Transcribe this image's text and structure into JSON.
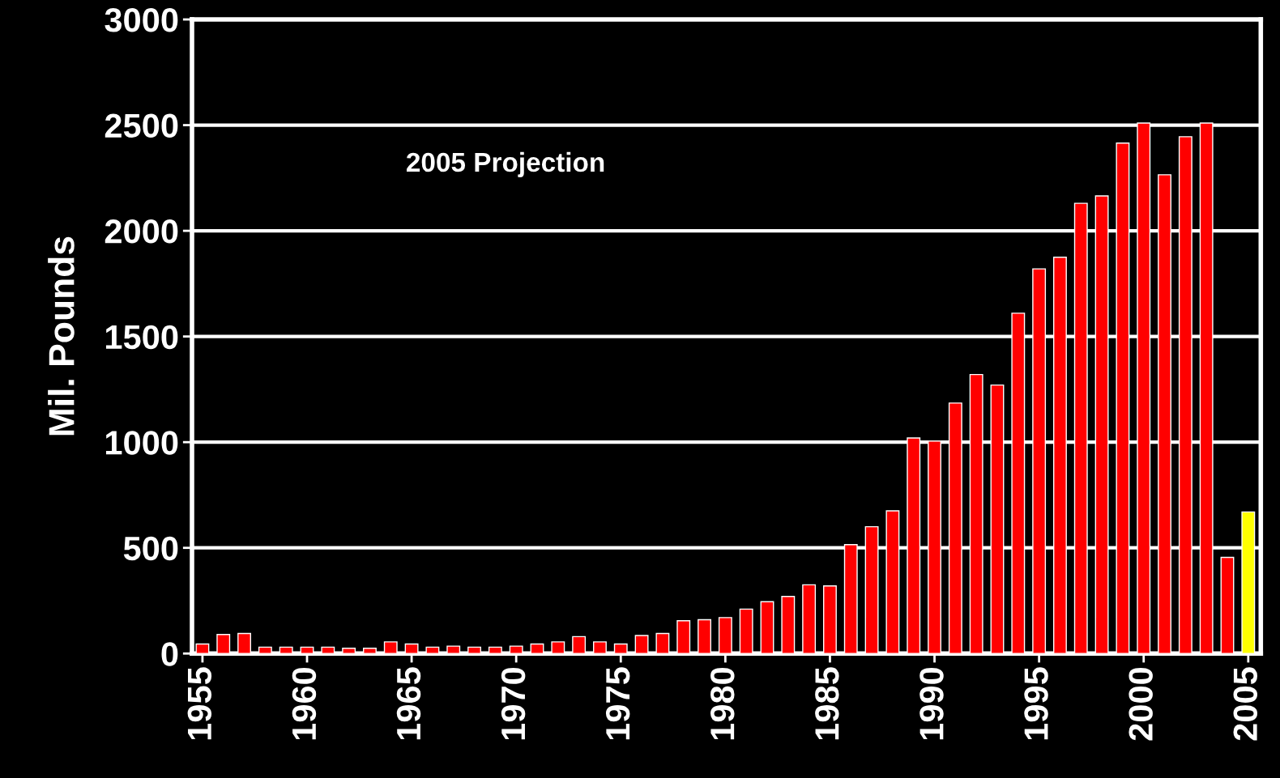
{
  "chart_data": {
    "type": "bar",
    "ylabel": "Mil. Pounds",
    "x": [
      1955,
      1956,
      1957,
      1958,
      1959,
      1960,
      1961,
      1962,
      1963,
      1964,
      1965,
      1966,
      1967,
      1968,
      1969,
      1970,
      1971,
      1972,
      1973,
      1974,
      1975,
      1976,
      1977,
      1978,
      1979,
      1980,
      1981,
      1982,
      1983,
      1984,
      1985,
      1986,
      1987,
      1988,
      1989,
      1990,
      1991,
      1992,
      1993,
      1994,
      1995,
      1996,
      1997,
      1998,
      1999,
      2000,
      2001,
      2002,
      2003,
      2004,
      2005
    ],
    "values": [
      45,
      90,
      95,
      30,
      30,
      30,
      30,
      25,
      25,
      55,
      45,
      30,
      35,
      30,
      30,
      35,
      45,
      55,
      80,
      55,
      45,
      85,
      95,
      155,
      160,
      170,
      210,
      245,
      270,
      325,
      320,
      515,
      600,
      675,
      1020,
      1005,
      1185,
      1320,
      1270,
      1610,
      1820,
      1875,
      2130,
      2165,
      2415,
      2510,
      2265,
      2445,
      2510,
      455,
      670
    ],
    "colors": [
      "#ff0000",
      "#ff0000",
      "#ff0000",
      "#ff0000",
      "#ff0000",
      "#ff0000",
      "#ff0000",
      "#ff0000",
      "#ff0000",
      "#ff0000",
      "#ff0000",
      "#ff0000",
      "#ff0000",
      "#ff0000",
      "#ff0000",
      "#ff0000",
      "#ff0000",
      "#ff0000",
      "#ff0000",
      "#ff0000",
      "#ff0000",
      "#ff0000",
      "#ff0000",
      "#ff0000",
      "#ff0000",
      "#ff0000",
      "#ff0000",
      "#ff0000",
      "#ff0000",
      "#ff0000",
      "#ff0000",
      "#ff0000",
      "#ff0000",
      "#ff0000",
      "#ff0000",
      "#ff0000",
      "#ff0000",
      "#ff0000",
      "#ff0000",
      "#ff0000",
      "#ff0000",
      "#ff0000",
      "#ff0000",
      "#ff0000",
      "#ff0000",
      "#ff0000",
      "#ff0000",
      "#ff0000",
      "#ff0000",
      "#ff0000",
      "#ffff00"
    ],
    "xlim": [
      1954.5,
      2005.6
    ],
    "xticks": [
      1955,
      1960,
      1965,
      1970,
      1975,
      1980,
      1985,
      1990,
      1995,
      2000,
      2005
    ],
    "ylim": [
      0,
      3000
    ],
    "yticks": [
      0,
      500,
      1000,
      1500,
      2000,
      2500,
      3000
    ],
    "grid": "y",
    "legend": false,
    "annotations": [
      "2005 Projection"
    ]
  }
}
